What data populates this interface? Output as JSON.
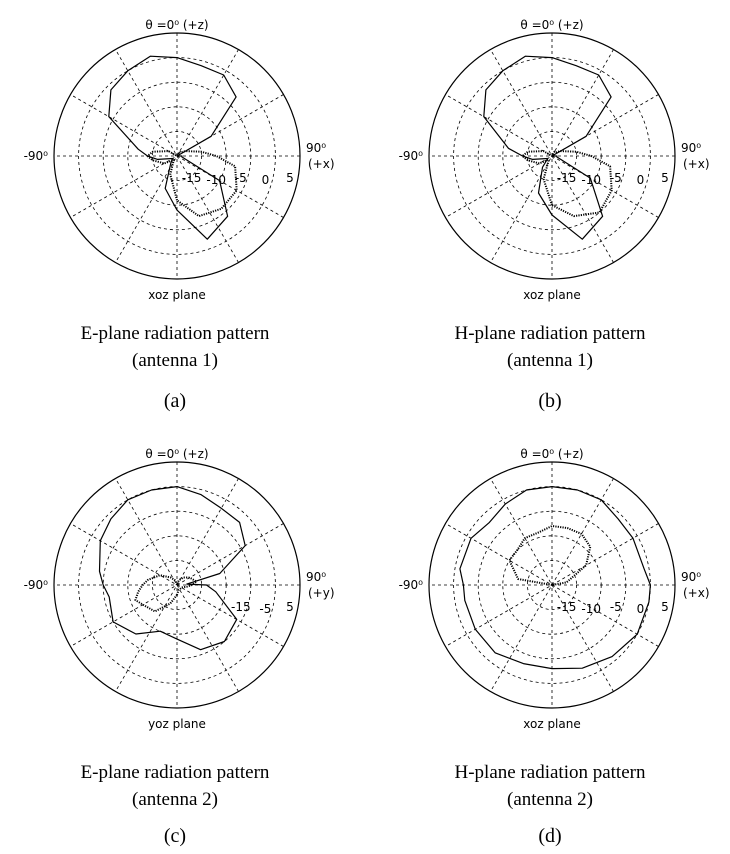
{
  "chart_data": [
    {
      "type": "polar-line",
      "panel": "(a)",
      "caption_line1": "E-plane radiation pattern",
      "caption_line2": "(antenna 1)",
      "top_label": "θ =0⁰ (+z)",
      "left_label": "-90⁰",
      "right_label": "90⁰",
      "right_axis": "(+x)",
      "plane_label": "xoz plane",
      "radial_ticks": [
        "-15",
        "-10",
        "-5",
        "0",
        "5"
      ],
      "r_range_db": [
        -20,
        5
      ],
      "angle_unit": "deg",
      "series": [
        {
          "style": "solid",
          "theta": [
            -180,
            -160,
            -140,
            -120,
            -100,
            -90,
            -80,
            -60,
            -45,
            -30,
            -15,
            0,
            15,
            30,
            45,
            60,
            80,
            90,
            100,
            120,
            140,
            160,
            180
          ],
          "r_db": [
            -9,
            -13,
            -18,
            -19,
            -16,
            -14,
            -12,
            -4,
            -1,
            0,
            1,
            0,
            -1,
            -1,
            -3,
            -12,
            -20,
            -19,
            -19,
            -10,
            -4,
            -2,
            -9
          ]
        },
        {
          "style": "dotted",
          "theta": [
            -180,
            -160,
            -140,
            -120,
            -100,
            -90,
            -80,
            -60,
            -45,
            -30,
            -15,
            0,
            15,
            30,
            45,
            60,
            80,
            90,
            100,
            120,
            140,
            160,
            180
          ],
          "r_db": [
            -11,
            -16,
            -19,
            -17,
            -15,
            -14,
            -15,
            -18,
            -20,
            -20,
            -20,
            -20,
            -20,
            -19,
            -19,
            -18,
            -15,
            -12,
            -8,
            -6,
            -6,
            -7,
            -11
          ]
        }
      ]
    },
    {
      "type": "polar-line",
      "panel": "(b)",
      "caption_line1": "H-plane radiation pattern",
      "caption_line2": "(antenna 1)",
      "top_label": "θ =0⁰ (+z)",
      "left_label": "-90⁰",
      "right_label": "90⁰",
      "right_axis": "(+x)",
      "plane_label": "xoz plane",
      "radial_ticks": [
        "-15",
        "-10",
        "-5",
        "0",
        "5"
      ],
      "r_range_db": [
        -20,
        5
      ],
      "angle_unit": "deg",
      "series": [
        {
          "style": "solid",
          "theta": [
            -180,
            -160,
            -140,
            -120,
            -100,
            -90,
            -80,
            -60,
            -45,
            -30,
            -15,
            0,
            15,
            30,
            45,
            60,
            80,
            90,
            100,
            120,
            140,
            160,
            180
          ],
          "r_db": [
            -8,
            -12,
            -17,
            -19,
            -16,
            -14,
            -11,
            -4,
            -1,
            0,
            1,
            0,
            -1,
            -1,
            -3,
            -12,
            -20,
            -19,
            -19,
            -11,
            -4,
            -2,
            -8
          ]
        },
        {
          "style": "dotted",
          "theta": [
            -180,
            -160,
            -140,
            -120,
            -100,
            -90,
            -80,
            -60,
            -45,
            -30,
            -15,
            0,
            15,
            30,
            45,
            60,
            80,
            90,
            100,
            120,
            140,
            160,
            180
          ],
          "r_db": [
            -10,
            -15,
            -19,
            -17,
            -15,
            -14,
            -15,
            -18,
            -20,
            -20,
            -20,
            -20,
            -20,
            -19,
            -19,
            -18,
            -15,
            -12,
            -8,
            -6,
            -5,
            -7,
            -10
          ]
        }
      ]
    },
    {
      "type": "polar-line",
      "panel": "(c)",
      "caption_line1": "E-plane radiation pattern",
      "caption_line2": "(antenna 2)",
      "top_label": "θ =0⁰ (+z)",
      "left_label": "-90⁰",
      "right_label": "90⁰",
      "right_axis": "(+y)",
      "plane_label": "yoz plane",
      "radial_ticks": [
        "-15",
        "-5",
        "5"
      ],
      "r_range_db": [
        -20,
        5
      ],
      "angle_unit": "deg",
      "series": [
        {
          "style": "solid",
          "theta": [
            -180,
            -160,
            -140,
            -120,
            -100,
            -90,
            -80,
            -60,
            -45,
            -30,
            -15,
            0,
            15,
            30,
            45,
            60,
            75,
            85,
            90,
            100,
            120,
            140,
            160,
            180
          ],
          "r_db": [
            -9,
            -10,
            -7,
            -5,
            -6,
            -5,
            -4,
            -2,
            -1,
            0,
            0,
            0,
            -1,
            -2,
            -2,
            -4,
            -11,
            -18,
            -14,
            -12,
            -6,
            -5,
            -6,
            -9
          ]
        },
        {
          "style": "dotted",
          "theta": [
            -180,
            -160,
            -140,
            -120,
            -110,
            -100,
            -90,
            -80,
            -60,
            -40,
            -20,
            0,
            20,
            40,
            60,
            80,
            90,
            100,
            120,
            140,
            160,
            180
          ],
          "r_db": [
            -18,
            -16,
            -13,
            -12,
            -11,
            -12,
            -13,
            -14,
            -16,
            -18,
            -19,
            -20,
            -19,
            -18,
            -17,
            -16,
            -17,
            -18,
            -19,
            -19,
            -19,
            -18
          ]
        }
      ]
    },
    {
      "type": "polar-line",
      "panel": "(d)",
      "caption_line1": "H-plane radiation pattern",
      "caption_line2": "(antenna 2)",
      "top_label": "θ =0⁰ (+z)",
      "left_label": "-90⁰",
      "right_label": "90⁰",
      "right_axis": "(+x)",
      "plane_label": "xoz plane",
      "radial_ticks": [
        "-15",
        "-10",
        "-5",
        "0",
        "5"
      ],
      "r_range_db": [
        -20,
        5
      ],
      "angle_unit": "deg",
      "series": [
        {
          "style": "solid",
          "theta": [
            -180,
            -160,
            -140,
            -120,
            -100,
            -90,
            -80,
            -60,
            -45,
            -30,
            -15,
            0,
            15,
            30,
            45,
            60,
            80,
            90,
            100,
            120,
            140,
            160,
            180
          ],
          "r_db": [
            -3,
            -3,
            -2,
            -2,
            -2,
            -2,
            -1,
            -1,
            -2,
            -1,
            0,
            0,
            0,
            0,
            -1,
            -1,
            -1,
            0,
            0,
            0,
            -1,
            -2,
            -3
          ]
        },
        {
          "style": "dotted",
          "theta": [
            -180,
            -150,
            -120,
            -100,
            -90,
            -80,
            -60,
            -45,
            -30,
            -15,
            0,
            15,
            30,
            45,
            60,
            80,
            90,
            100,
            120,
            150,
            180
          ],
          "r_db": [
            -20,
            -20,
            -20,
            -20,
            -20,
            -13,
            -10,
            -10,
            -9,
            -9,
            -8,
            -8,
            -8,
            -9,
            -12,
            -17,
            -20,
            -20,
            -20,
            -20,
            -20
          ]
        }
      ]
    }
  ]
}
